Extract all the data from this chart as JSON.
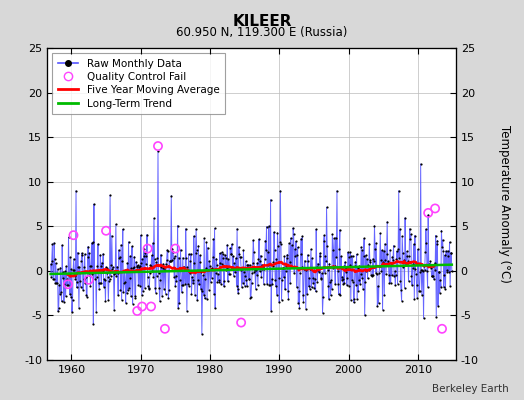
{
  "title": "KILEER",
  "subtitle": "60.950 N, 119.300 E (Russia)",
  "ylabel": "Temperature Anomaly (°C)",
  "credit": "Berkeley Earth",
  "x_start_year": 1957,
  "x_end_year": 2015,
  "ylim": [
    -10,
    25
  ],
  "yticks": [
    -10,
    -5,
    0,
    5,
    10,
    15,
    20,
    25
  ],
  "xticks": [
    1960,
    1970,
    1980,
    1990,
    2000,
    2010
  ],
  "background_color": "#d8d8d8",
  "plot_bg_color": "#ffffff",
  "line_color": "#5555ff",
  "dot_color": "#000000",
  "ma_color": "#ff0000",
  "trend_color": "#00bb00",
  "qc_color": "#ff44ff",
  "trend_slope": 0.018,
  "trend_intercept": -0.35,
  "seed": 42,
  "qc_years": [
    1959.5,
    1960.3,
    1962.5,
    1965.0,
    1969.5,
    1970.2,
    1971.0,
    1971.5,
    1972.5,
    1973.5,
    1975.0,
    1984.5,
    2011.5,
    2012.5,
    2013.5
  ],
  "qc_values": [
    -1.5,
    4.0,
    -1.0,
    4.5,
    -4.5,
    -4.0,
    2.5,
    -4.0,
    14.0,
    -6.5,
    2.5,
    -5.8,
    6.5,
    7.0,
    -6.5
  ]
}
